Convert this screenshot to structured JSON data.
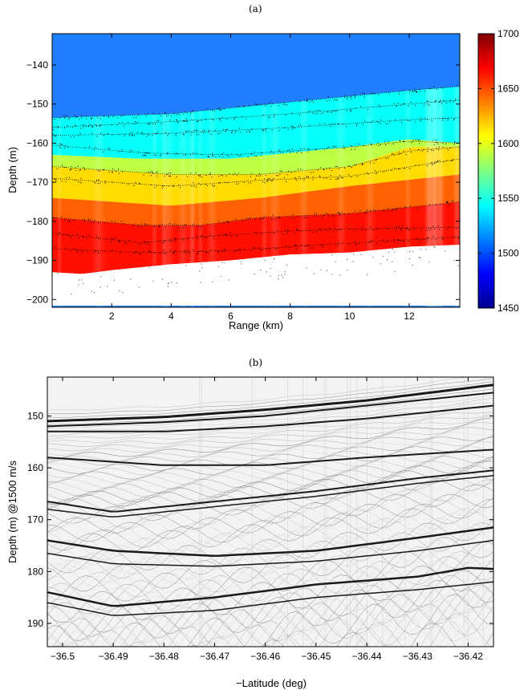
{
  "panels": {
    "a_label": "(a)",
    "b_label": "(b)"
  },
  "chart_data": [
    {
      "type": "heatmap",
      "panel": "(a)",
      "xlabel": "Range (km)",
      "ylabel": "Depth (m)",
      "xlim": [
        0,
        13.7
      ],
      "ylim": [
        -202,
        -132
      ],
      "x_ticks": [
        2,
        4,
        6,
        8,
        10,
        12
      ],
      "y_ticks": [
        -140,
        -150,
        -160,
        -170,
        -180,
        -190,
        -200
      ],
      "colorbar": {
        "min": 1450,
        "max": 1700,
        "ticks": [
          1450,
          1500,
          1550,
          1600,
          1650,
          1700
        ],
        "colormap": "jet"
      },
      "colors": {
        "water": "#1f7fff",
        "seabed_bottom": "#ffffff",
        "reflector_dots": "#000000"
      },
      "layers": [
        {
          "sound_speed": 1500,
          "top_depth_at_range": [
            [
              0,
              -132
            ],
            [
              13.7,
              -132
            ]
          ]
        },
        {
          "sound_speed": 1545,
          "top_depth_at_range": [
            [
              0,
              -153.5
            ],
            [
              4,
              -152.5
            ],
            [
              8,
              -149.5
            ],
            [
              12,
              -146.5
            ],
            [
              13.7,
              -145.5
            ]
          ]
        },
        {
          "sound_speed": 1590,
          "top_depth_at_range": [
            [
              0,
              -163
            ],
            [
              3,
              -164
            ],
            [
              6,
              -164
            ],
            [
              10,
              -161
            ],
            [
              12,
              -159
            ],
            [
              13.7,
              -160
            ]
          ]
        },
        {
          "sound_speed": 1615,
          "top_depth_at_range": [
            [
              0,
              -166
            ],
            [
              4,
              -168
            ],
            [
              7,
              -168
            ],
            [
              10,
              -166
            ],
            [
              12,
              -161
            ],
            [
              13.7,
              -161
            ]
          ]
        },
        {
          "sound_speed": 1645,
          "top_depth_at_range": [
            [
              0,
              -174
            ],
            [
              4,
              -176
            ],
            [
              7,
              -174
            ],
            [
              10,
              -171
            ],
            [
              13.7,
              -168
            ]
          ]
        },
        {
          "sound_speed": 1665,
          "top_depth_at_range": [
            [
              0,
              -179
            ],
            [
              3,
              -181
            ],
            [
              5,
              -181
            ],
            [
              7,
              -179
            ],
            [
              10,
              -178
            ],
            [
              13.7,
              -175
            ]
          ]
        }
      ],
      "seabed_depth_at_range": [
        [
          0,
          -193
        ],
        [
          1,
          -193.5
        ],
        [
          2,
          -192.5
        ],
        [
          4,
          -191
        ],
        [
          6,
          -190
        ],
        [
          8,
          -188.5
        ],
        [
          10,
          -188
        ],
        [
          12,
          -186.5
        ],
        [
          13.7,
          -186
        ]
      ],
      "reflectors": [
        [
          [
            0,
            -153.5
          ],
          [
            4,
            -152.5
          ],
          [
            8,
            -149.5
          ],
          [
            12,
            -146.5
          ],
          [
            13.7,
            -145.5
          ]
        ],
        [
          [
            0,
            -156
          ],
          [
            4,
            -154.5
          ],
          [
            8,
            -152.5
          ],
          [
            12,
            -150
          ],
          [
            13.7,
            -149
          ]
        ],
        [
          [
            0,
            -158
          ],
          [
            4,
            -157.5
          ],
          [
            8,
            -156
          ],
          [
            12,
            -154
          ],
          [
            13.7,
            -153.5
          ]
        ],
        [
          [
            0,
            -160.5
          ],
          [
            3,
            -162.5
          ],
          [
            6,
            -163
          ],
          [
            10,
            -161
          ],
          [
            12,
            -159.5
          ],
          [
            13.7,
            -160
          ]
        ],
        [
          [
            0,
            -166
          ],
          [
            4,
            -168
          ],
          [
            7,
            -168
          ],
          [
            10,
            -166
          ],
          [
            12,
            -162
          ],
          [
            13.7,
            -161
          ]
        ],
        [
          [
            0,
            -169
          ],
          [
            4,
            -171
          ],
          [
            7,
            -169.5
          ],
          [
            10,
            -168.5
          ],
          [
            13.7,
            -164
          ]
        ],
        [
          [
            0,
            -179
          ],
          [
            3,
            -181
          ],
          [
            5,
            -181
          ],
          [
            7,
            -179
          ],
          [
            10,
            -178
          ],
          [
            13.7,
            -175
          ]
        ],
        [
          [
            0,
            -183
          ],
          [
            3,
            -185.5
          ],
          [
            5,
            -184
          ],
          [
            8,
            -182.5
          ],
          [
            10,
            -182
          ],
          [
            13.7,
            -181.5
          ]
        ],
        [
          [
            0,
            -187
          ],
          [
            3,
            -188
          ],
          [
            6,
            -187.5
          ],
          [
            9,
            -186
          ],
          [
            13.7,
            -184
          ]
        ]
      ]
    },
    {
      "type": "heatmap",
      "panel": "(b)",
      "xlabel": "−Latitude (deg)",
      "ylabel": "Depth (m) @1500 m/s",
      "xlim": [
        -36.503,
        -36.415
      ],
      "ylim": [
        194.5,
        142.5
      ],
      "x_tick_values": [
        -36.5,
        -36.49,
        -36.48,
        -36.47,
        -36.46,
        -36.45,
        -36.44,
        -36.43,
        -36.42
      ],
      "x_tick_labels": [
        "−36.5",
        "−36.49",
        "−36.48",
        "−36.47",
        "−36.46",
        "−36.45",
        "−36.44",
        "−36.43",
        "−36.42"
      ],
      "y_ticks": [
        150,
        160,
        170,
        180,
        190
      ],
      "colormap": "gray",
      "horizons": [
        {
          "weight": 3,
          "points": [
            [
              -36.503,
              151
            ],
            [
              -36.48,
              150.2
            ],
            [
              -36.46,
              148.8
            ],
            [
              -36.44,
              147
            ],
            [
              -36.415,
              144
            ]
          ]
        },
        {
          "weight": 2,
          "points": [
            [
              -36.503,
              152
            ],
            [
              -36.48,
              151.2
            ],
            [
              -36.46,
              150
            ],
            [
              -36.44,
              148
            ],
            [
              -36.415,
              145.5
            ]
          ]
        },
        {
          "weight": 2,
          "points": [
            [
              -36.503,
              153
            ],
            [
              -36.48,
              153
            ],
            [
              -36.46,
              152
            ],
            [
              -36.44,
              150.5
            ],
            [
              -36.415,
              148
            ]
          ]
        },
        {
          "weight": 2,
          "points": [
            [
              -36.503,
              158
            ],
            [
              -36.48,
              159.5
            ],
            [
              -36.46,
              159.5
            ],
            [
              -36.44,
              158
            ],
            [
              -36.415,
              156.5
            ]
          ]
        },
        {
          "weight": 2,
          "points": [
            [
              -36.503,
              166.5
            ],
            [
              -36.49,
              168.5
            ],
            [
              -36.47,
              166.5
            ],
            [
              -36.45,
              164.5
            ],
            [
              -36.43,
              162
            ],
            [
              -36.415,
              160.5
            ]
          ]
        },
        {
          "weight": 1.5,
          "points": [
            [
              -36.503,
              168
            ],
            [
              -36.49,
              169.5
            ],
            [
              -36.47,
              167.5
            ],
            [
              -36.45,
              165.5
            ],
            [
              -36.43,
              163
            ],
            [
              -36.415,
              161.5
            ]
          ]
        },
        {
          "weight": 2.5,
          "points": [
            [
              -36.503,
              174
            ],
            [
              -36.49,
              176
            ],
            [
              -36.47,
              177
            ],
            [
              -36.45,
              176
            ],
            [
              -36.43,
              173.5
            ],
            [
              -36.415,
              171.5
            ]
          ]
        },
        {
          "weight": 1.5,
          "points": [
            [
              -36.503,
              176.5
            ],
            [
              -36.49,
              178.5
            ],
            [
              -36.47,
              179
            ],
            [
              -36.45,
              178
            ],
            [
              -36.43,
              176
            ],
            [
              -36.415,
              174
            ]
          ]
        },
        {
          "weight": 2.5,
          "points": [
            [
              -36.503,
              184
            ],
            [
              -36.49,
              186.7
            ],
            [
              -36.47,
              185
            ],
            [
              -36.45,
              182.5
            ],
            [
              -36.43,
              181
            ],
            [
              -36.42,
              179.3
            ],
            [
              -36.415,
              179.5
            ]
          ]
        },
        {
          "weight": 1.5,
          "points": [
            [
              -36.503,
              186
            ],
            [
              -36.49,
              188.5
            ],
            [
              -36.47,
              187.5
            ],
            [
              -36.45,
              185
            ],
            [
              -36.43,
              183.5
            ],
            [
              -36.415,
              182
            ]
          ]
        }
      ]
    }
  ]
}
